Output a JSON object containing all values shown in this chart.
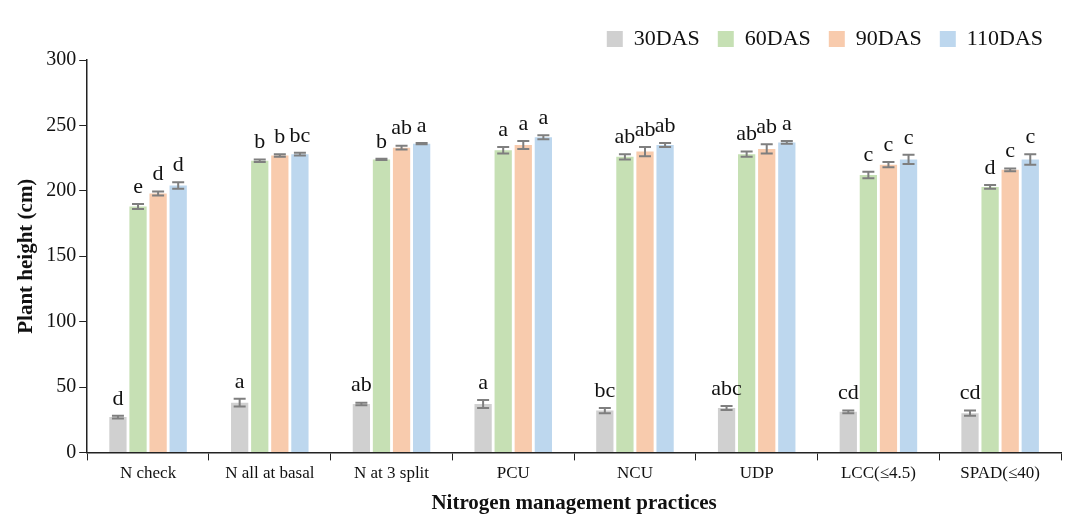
{
  "chart_data": {
    "type": "bar",
    "xlabel": "Nitrogen management practices",
    "ylabel": "Plant height (cm)",
    "categories": [
      "N check",
      "N all at basal",
      "N at 3 split",
      "PCU",
      "NCU",
      "UDP",
      "LCC(≤4.5)",
      "SPAD(≤40)"
    ],
    "series": [
      {
        "name": "30DAS",
        "color": "#d0d0d0",
        "values": [
          27,
          38,
          37,
          37,
          32,
          34,
          31,
          30
        ],
        "errors": [
          1,
          3,
          1,
          3,
          2,
          1.5,
          1,
          2
        ],
        "value_labels": [
          "d",
          "a",
          "ab",
          "a",
          "bc",
          "abc",
          "cd",
          "cd"
        ]
      },
      {
        "name": "60DAS",
        "color": "#c6e0b4",
        "values": [
          188,
          223,
          224,
          231,
          226,
          228,
          212,
          203
        ],
        "errors": [
          2,
          1,
          0.5,
          2.5,
          2,
          2,
          2.5,
          1.5
        ],
        "value_labels": [
          "e",
          "b",
          "b",
          "a",
          "ab",
          "ab",
          "c",
          "d"
        ]
      },
      {
        "name": "90DAS",
        "color": "#f8cbad",
        "values": [
          198,
          227,
          233,
          235,
          230,
          232,
          220,
          216
        ],
        "errors": [
          1.5,
          1,
          1.5,
          3,
          3.5,
          3.5,
          2,
          1
        ],
        "value_labels": [
          "d",
          "b",
          "ab",
          "a",
          "ab",
          "ab",
          "c",
          "c"
        ]
      },
      {
        "name": "110DAS",
        "color": "#bdd7ee",
        "values": [
          204,
          228,
          236,
          241,
          235,
          237,
          224,
          224
        ],
        "errors": [
          2.5,
          1,
          0.5,
          1.5,
          1.5,
          1,
          3.5,
          4
        ],
        "value_labels": [
          "d",
          "bc",
          "a",
          "a",
          "ab",
          "a",
          "c",
          "c"
        ]
      }
    ],
    "ylim": [
      0,
      300
    ],
    "yticks": [
      0,
      50,
      100,
      150,
      200,
      250,
      300
    ],
    "grid": false,
    "legend": "top right"
  }
}
